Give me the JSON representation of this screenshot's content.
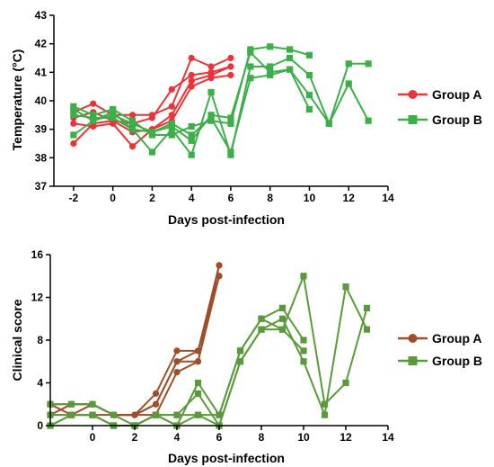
{
  "chart_data": [
    {
      "type": "line",
      "title": "",
      "xlabel": "Days post-infection",
      "ylabel": "Temperature (°C)",
      "xlim": [
        -3,
        14
      ],
      "ylim": [
        37,
        43
      ],
      "xticks": [
        -2,
        0,
        2,
        4,
        6,
        8,
        10,
        12,
        14
      ],
      "yticks": [
        37,
        38,
        39,
        40,
        41,
        42,
        43
      ],
      "legend_position": "right",
      "groups": [
        {
          "name": "Group A",
          "color": "#e8343a",
          "marker": "circle",
          "series": [
            {
              "x": [
                -2,
                -1,
                0,
                1,
                2,
                3,
                4,
                5,
                6
              ],
              "y": [
                39.6,
                39.9,
                39.5,
                39.5,
                39.5,
                39.8,
                41.5,
                41.2,
                41.5
              ]
            },
            {
              "x": [
                -2,
                -1,
                0,
                1,
                2,
                3,
                4,
                5,
                6
              ],
              "y": [
                39.4,
                39.6,
                39.3,
                39.2,
                39.4,
                40.4,
                40.9,
                41.0,
                41.2
              ]
            },
            {
              "x": [
                -2,
                -1,
                0,
                1,
                2,
                3,
                4,
                5,
                6
              ],
              "y": [
                39.2,
                39.1,
                39.2,
                38.4,
                39.0,
                39.5,
                40.7,
                40.9,
                41.2
              ]
            },
            {
              "x": [
                -2,
                -1,
                0,
                1,
                2,
                3,
                4,
                5,
                6
              ],
              "y": [
                38.5,
                39.2,
                39.3,
                38.9,
                39.0,
                39.3,
                40.5,
                40.8,
                40.9
              ]
            }
          ]
        },
        {
          "name": "Group B",
          "color": "#3dae49",
          "marker": "square",
          "series": [
            {
              "x": [
                -2,
                -1,
                0,
                1,
                2,
                3,
                4,
                5,
                6,
                7,
                8,
                9,
                10
              ],
              "y": [
                39.8,
                39.5,
                39.7,
                39.3,
                38.8,
                38.8,
                39.1,
                39.3,
                39.2,
                41.8,
                41.9,
                41.8,
                41.6
              ]
            },
            {
              "x": [
                -2,
                -1,
                0,
                1,
                2,
                3,
                4,
                5,
                6,
                7,
                8,
                9,
                10,
                11,
                12,
                13
              ],
              "y": [
                39.7,
                39.3,
                39.6,
                39.0,
                38.2,
                39.0,
                38.1,
                40.3,
                38.1,
                41.2,
                41.2,
                41.5,
                40.9,
                39.2,
                41.3,
                41.3
              ]
            },
            {
              "x": [
                -2,
                -1,
                0,
                1,
                2,
                3,
                4,
                5,
                6,
                7,
                8,
                9,
                10,
                11,
                12,
                13
              ],
              "y": [
                38.8,
                39.3,
                39.5,
                39.2,
                38.9,
                39.1,
                38.6,
                39.5,
                39.4,
                41.7,
                41.0,
                41.1,
                40.2,
                39.2,
                40.6,
                39.3
              ]
            },
            {
              "x": [
                -2,
                -1,
                0,
                1,
                2,
                3,
                4,
                5,
                6,
                7,
                8,
                9,
                10
              ],
              "y": [
                39.5,
                39.4,
                39.4,
                39.0,
                38.9,
                39.2,
                38.8,
                39.4,
                38.2,
                40.8,
                40.9,
                41.1,
                39.7
              ]
            }
          ]
        }
      ]
    },
    {
      "type": "line",
      "title": "",
      "xlabel": "Days post-infection",
      "ylabel": "Clinical score",
      "xlim": [
        -2,
        14
      ],
      "ylim": [
        0,
        16
      ],
      "xticks": [
        0,
        2,
        4,
        6,
        8,
        10,
        12,
        14
      ],
      "yticks": [
        0,
        4,
        8,
        12,
        16
      ],
      "legend_position": "right",
      "groups": [
        {
          "name": "Group A",
          "color": "#9c4f2c",
          "marker": "circle",
          "series": [
            {
              "x": [
                -2,
                -1,
                0,
                1,
                2,
                3,
                4,
                5,
                6
              ],
              "y": [
                2,
                2,
                2,
                1,
                1,
                3,
                7,
                7,
                15
              ]
            },
            {
              "x": [
                -2,
                -1,
                0,
                1,
                2,
                3,
                4,
                5,
                6
              ],
              "y": [
                1,
                2,
                2,
                1,
                1,
                2,
                6,
                6,
                14
              ]
            },
            {
              "x": [
                -2,
                -1,
                0,
                1,
                2,
                3,
                4,
                5,
                6
              ],
              "y": [
                2,
                1,
                1,
                1,
                1,
                1,
                5,
                6,
                15
              ]
            },
            {
              "x": [
                -2,
                -1,
                0,
                1,
                2,
                3,
                4,
                5,
                6
              ],
              "y": [
                1,
                1,
                2,
                1,
                1,
                2,
                6,
                7,
                14
              ]
            }
          ]
        },
        {
          "name": "Group B",
          "color": "#5a9a3c",
          "marker": "square",
          "series": [
            {
              "x": [
                -2,
                -1,
                0,
                1,
                2,
                3,
                4,
                5,
                6,
                7,
                8,
                9,
                10
              ],
              "y": [
                2,
                2,
                2,
                1,
                0,
                1,
                0,
                4,
                1,
                7,
                10,
                11,
                8
              ]
            },
            {
              "x": [
                -2,
                -1,
                0,
                1,
                2,
                3,
                4,
                5,
                6,
                7,
                8,
                9,
                10,
                11,
                12,
                13
              ],
              "y": [
                1,
                1,
                1,
                0,
                0,
                1,
                1,
                3,
                0,
                6,
                9,
                10,
                6,
                1,
                13,
                9
              ]
            },
            {
              "x": [
                -2,
                -1,
                0,
                1,
                2,
                3,
                4,
                5,
                6,
                7,
                8,
                9,
                10,
                11,
                12,
                13
              ],
              "y": [
                0,
                1,
                1,
                0,
                0,
                1,
                0,
                1,
                1,
                7,
                10,
                9,
                14,
                2,
                4,
                11
              ]
            },
            {
              "x": [
                -2,
                -1,
                0,
                1,
                2,
                3,
                4,
                5,
                6,
                7,
                8,
                9,
                10
              ],
              "y": [
                0,
                1,
                1,
                0,
                0,
                1,
                1,
                1,
                0,
                6,
                9,
                9,
                7
              ]
            }
          ]
        }
      ]
    }
  ]
}
